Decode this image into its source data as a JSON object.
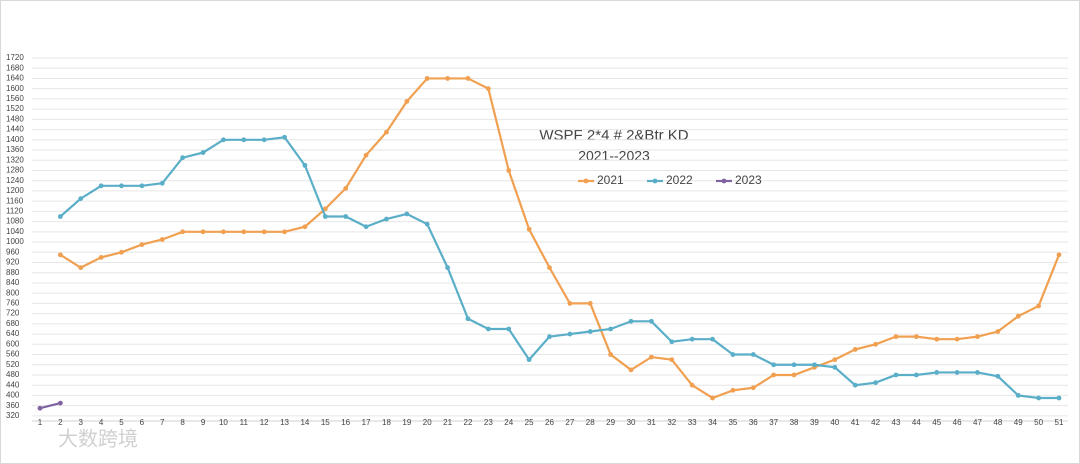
{
  "chart_data": {
    "type": "line",
    "title": "WSPF 2*4 # 2&Btr KD",
    "subtitle": "2021--2023",
    "watermark": "大数跨境",
    "categories": [
      "1",
      "2",
      "3",
      "4",
      "5",
      "6",
      "7",
      "8",
      "9",
      "10",
      "11",
      "12",
      "13",
      "14",
      "15",
      "16",
      "17",
      "18",
      "19",
      "20",
      "21",
      "22",
      "23",
      "24",
      "25",
      "26",
      "27",
      "28",
      "29",
      "30",
      "31",
      "32",
      "33",
      "34",
      "35",
      "36",
      "37",
      "38",
      "39",
      "40",
      "41",
      "42",
      "43",
      "44",
      "45",
      "46",
      "47",
      "48",
      "49",
      "50",
      "51"
    ],
    "series": [
      {
        "name": "2021",
        "color": "#f0a050",
        "values": [
          null,
          950,
          900,
          940,
          960,
          990,
          1010,
          1040,
          1040,
          1040,
          1040,
          1040,
          1040,
          1060,
          1130,
          1210,
          1340,
          1430,
          1550,
          1640,
          1640,
          1640,
          1600,
          1280,
          1050,
          900,
          760,
          760,
          560,
          500,
          550,
          540,
          440,
          390,
          420,
          430,
          480,
          480,
          510,
          540,
          580,
          600,
          630,
          630,
          620,
          620,
          630,
          650,
          710,
          750,
          950
        ]
      },
      {
        "name": "2022",
        "color": "#5aaec8",
        "values": [
          null,
          1100,
          1170,
          1220,
          1220,
          1220,
          1230,
          1330,
          1350,
          1400,
          1400,
          1400,
          1410,
          1300,
          1100,
          1100,
          1060,
          1090,
          1110,
          1070,
          900,
          700,
          660,
          660,
          540,
          630,
          640,
          650,
          660,
          690,
          690,
          610,
          620,
          620,
          560,
          560,
          520,
          520,
          520,
          510,
          440,
          450,
          480,
          480,
          490,
          490,
          490,
          475,
          400,
          390,
          390
        ]
      },
      {
        "name": "2023",
        "color": "#8064a2",
        "values": [
          350,
          370,
          null,
          null,
          null,
          null,
          null,
          null,
          null,
          null,
          null,
          null,
          null,
          null,
          null,
          null,
          null,
          null,
          null,
          null,
          null,
          null,
          null,
          null,
          null,
          null,
          null,
          null,
          null,
          null,
          null,
          null,
          null,
          null,
          null,
          null,
          null,
          null,
          null,
          null,
          null,
          null,
          null,
          null,
          null,
          null,
          null,
          null,
          null,
          null,
          null
        ]
      }
    ],
    "ylim": [
      300,
      1720
    ],
    "yticks": [
      320,
      360,
      400,
      440,
      480,
      520,
      560,
      600,
      640,
      680,
      720,
      760,
      800,
      840,
      880,
      920,
      960,
      1000,
      1040,
      1080,
      1120,
      1160,
      1200,
      1240,
      1280,
      1320,
      1360,
      1400,
      1440,
      1480,
      1520,
      1560,
      1600,
      1640,
      1680,
      1720
    ],
    "grid": true
  }
}
